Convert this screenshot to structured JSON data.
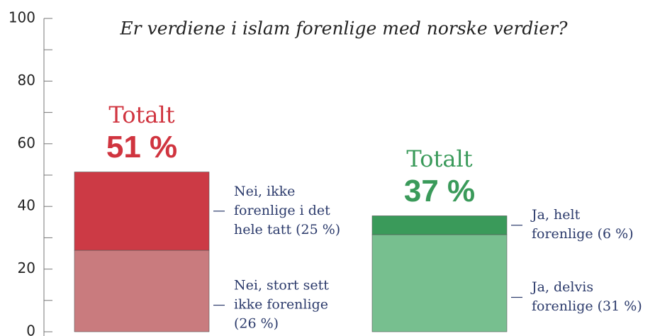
{
  "chart_data": {
    "type": "stacked_bar",
    "title": "Er verdiene i islam forenlige med norske verdier?",
    "ylim": [
      0,
      100
    ],
    "yticks": [
      0,
      20,
      40,
      60,
      80,
      100
    ],
    "yticks_minor": [
      10,
      30,
      50,
      70,
      90
    ],
    "bars": [
      {
        "total_heading": "Totalt",
        "total_label": "51 %",
        "total_color": "#d0343f",
        "segments": [
          {
            "value": 26,
            "color": "#c97b7e",
            "label_lines": [
              "Nei, stort sett",
              "ikke forenlige",
              "(26 %)"
            ]
          },
          {
            "value": 25,
            "color": "#cc3a45",
            "label_lines": [
              "Nei, ikke",
              "forenlige i det",
              "hele tatt (25 %)"
            ]
          }
        ]
      },
      {
        "total_heading": "Totalt",
        "total_label": "37 %",
        "total_color": "#3a9a5a",
        "segments": [
          {
            "value": 31,
            "color": "#77bf8f",
            "label_lines": [
              "Ja, delvis",
              "forenlige (31 %)"
            ]
          },
          {
            "value": 6,
            "color": "#3a9a5a",
            "label_lines": [
              "Ja, helt",
              "forenlige (6 %)"
            ]
          }
        ]
      }
    ]
  }
}
